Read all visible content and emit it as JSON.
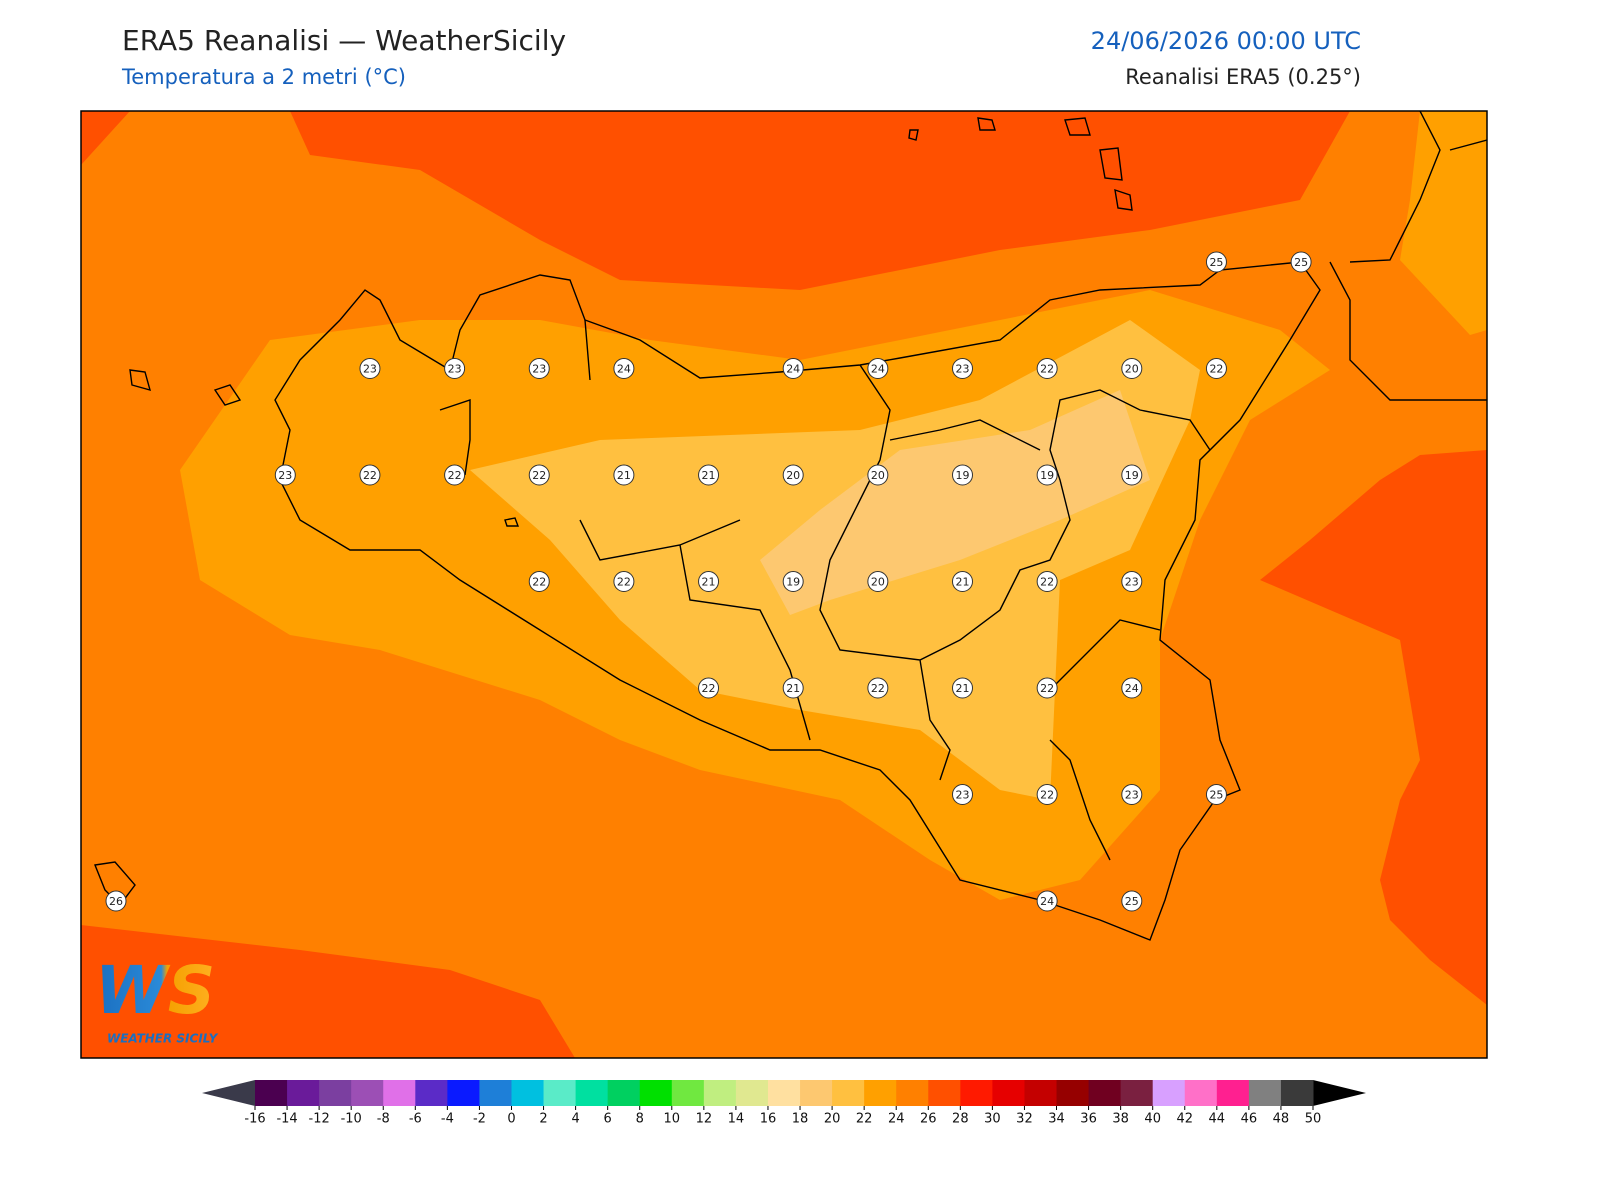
{
  "header": {
    "title": "ERA5 Reanalisi — WeatherSicily",
    "subtitle": "Temperatura a 2 metri (°C)",
    "datetime": "24/06/2026 00:00 UTC",
    "source": "Reanalisi ERA5 (0.25°)"
  },
  "stations": {
    "grid": [
      [
        null,
        null,
        null,
        null,
        null,
        null,
        null,
        null,
        null,
        null,
        null,
        null,
        null,
        25,
        25
      ],
      [
        null,
        null,
        null,
        23,
        23,
        23,
        24,
        null,
        24,
        24,
        23,
        22,
        20,
        22,
        null
      ],
      [
        null,
        null,
        23,
        22,
        22,
        22,
        21,
        21,
        20,
        20,
        19,
        19,
        19,
        null,
        null
      ],
      [
        null,
        null,
        null,
        null,
        null,
        22,
        22,
        21,
        19,
        20,
        21,
        22,
        23,
        null,
        null
      ],
      [
        null,
        null,
        null,
        null,
        null,
        null,
        null,
        22,
        21,
        22,
        21,
        22,
        24,
        null,
        null
      ],
      [
        null,
        null,
        null,
        null,
        null,
        null,
        null,
        null,
        null,
        null,
        23,
        22,
        23,
        25,
        null
      ],
      [
        26,
        null,
        null,
        null,
        null,
        null,
        null,
        null,
        null,
        null,
        null,
        24,
        25,
        null,
        null
      ]
    ]
  },
  "colorbar": {
    "ticks": [
      -16,
      -14,
      -12,
      -10,
      -8,
      -6,
      -4,
      -2,
      0,
      2,
      4,
      6,
      8,
      10,
      12,
      14,
      16,
      18,
      20,
      22,
      24,
      26,
      28,
      30,
      32,
      34,
      36,
      38,
      40,
      42,
      44,
      46,
      48,
      50
    ],
    "colors": [
      "#4b0050",
      "#6a1b9a",
      "#7b3fa0",
      "#9c4fb5",
      "#e070e8",
      "#5b2bc7",
      "#0a1aff",
      "#1e7fd8",
      "#00c0e0",
      "#5aebc8",
      "#00e0a0",
      "#00d060",
      "#00e000",
      "#70e840",
      "#c0ee80",
      "#e0e890",
      "#ffe0a0",
      "#fdc870",
      "#ffc040",
      "#ffa000",
      "#ff8000",
      "#ff5000",
      "#ff1a00",
      "#e60000",
      "#c40000",
      "#960000",
      "#700020",
      "#7a2040",
      "#d8a0ff",
      "#ff70c8",
      "#ff2090",
      "#808080",
      "#3a3a3a"
    ],
    "under_color": "#3a3a4a",
    "over_color": "#000000"
  },
  "logo": {
    "mark": "WS",
    "text": "WEATHER SICILY"
  }
}
